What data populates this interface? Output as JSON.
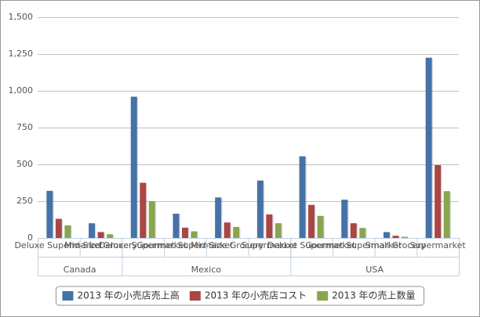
{
  "chart_data": {
    "type": "bar",
    "groups": [
      {
        "name": "Canada",
        "categories": [
          "Deluxe Supermarket",
          "Mid-Size Grocery"
        ]
      },
      {
        "name": "Mexico",
        "categories": [
          "Deluxe Supermarket",
          "Gourmet Supermarket",
          "Mid-Size Grocery",
          "Supermarket"
        ]
      },
      {
        "name": "USA",
        "categories": [
          "Deluxe Supermarket",
          "Gourmet Supermarket",
          "Small Grocery",
          "Supermarket"
        ]
      }
    ],
    "series": [
      {
        "name": "2013 年の小売店売上高",
        "color": "#4572a7",
        "values": [
          320,
          100,
          960,
          165,
          275,
          390,
          555,
          260,
          40,
          1225
        ]
      },
      {
        "name": "2013 年の小売店コスト",
        "color": "#aa4643",
        "values": [
          130,
          40,
          375,
          70,
          105,
          160,
          225,
          100,
          15,
          495
        ]
      },
      {
        "name": "2013 年の売上数量",
        "color": "#89a54e",
        "values": [
          85,
          25,
          250,
          45,
          75,
          100,
          150,
          68,
          8,
          318
        ]
      }
    ],
    "ylim": [
      0,
      1500
    ],
    "yticks": [
      0,
      250,
      500,
      750,
      {
        "value": 1000,
        "label": "1,000"
      },
      {
        "value": 1250,
        "label": "1,250"
      },
      {
        "value": 1500,
        "label": "1,500"
      }
    ],
    "grid": true
  }
}
